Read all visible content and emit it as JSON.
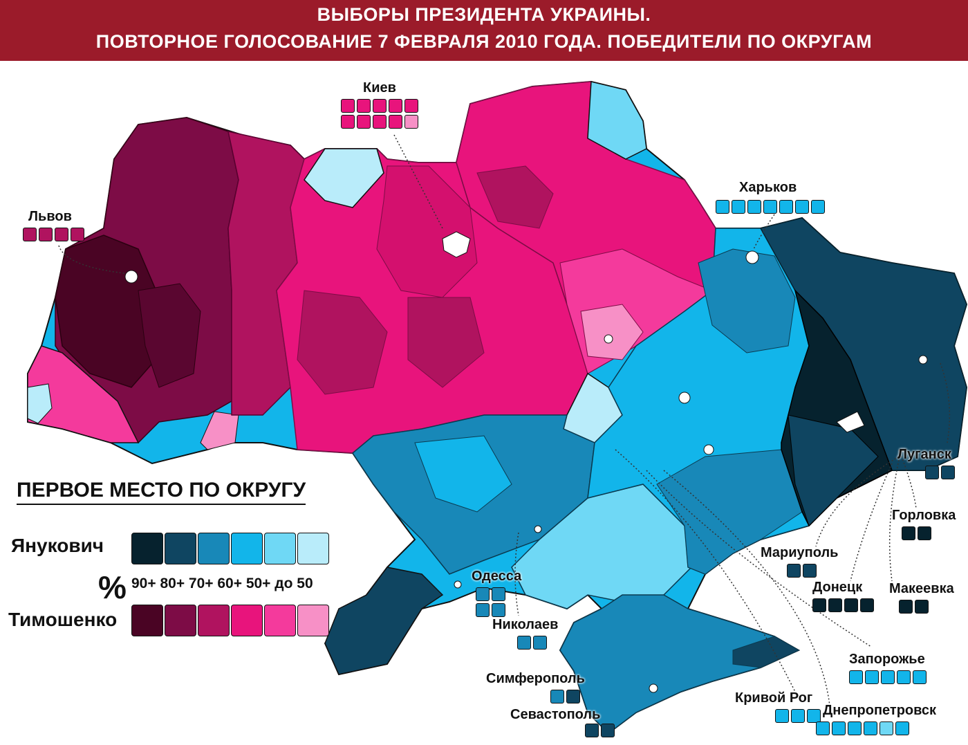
{
  "title": {
    "line1": "ВЫБОРЫ ПРЕЗИДЕНТА УКРАИНЫ.",
    "line2": "ПОВТОРНОЕ ГОЛОСОВАНИЕ 7 ФЕВРАЛЯ 2010 ГОДА. ПОБЕДИТЕЛИ ПО ОКРУГАМ"
  },
  "colors": {
    "header_bg": "#9b1b2a",
    "yanukovych": [
      "#06222e",
      "#0f4561",
      "#1888b8",
      "#12b5ea",
      "#6fd8f5",
      "#b9ecfa"
    ],
    "tymoshenko": [
      "#4a0424",
      "#7d0c46",
      "#b0135f",
      "#e8147c",
      "#f43a9c",
      "#f790c6"
    ]
  },
  "legend": {
    "title": "ПЕРВОЕ МЕСТО ПО ОКРУГУ",
    "yanukovych_label": "Янукович",
    "tymoshenko_label": "Тимошенко",
    "percent_sign": "%",
    "ranges": "90+ 80+ 70+ 60+ 50+ до 50"
  },
  "cities": [
    {
      "name": "Киев",
      "rows": [
        [
          1,
          1,
          1,
          1,
          1
        ],
        [
          1,
          1,
          1,
          1,
          3
        ]
      ],
      "party": "tymoshenko"
    },
    {
      "name": "Львов",
      "rows": [
        [
          1,
          1,
          1,
          1
        ]
      ],
      "party": "tymoshenko_dark"
    },
    {
      "name": "Харьков",
      "rows": [
        [
          3,
          3,
          3,
          3,
          3,
          3,
          3
        ]
      ],
      "party": "yanukovych"
    },
    {
      "name": "Луганск",
      "rows": [
        [
          1,
          1
        ]
      ],
      "party": "yanukovych"
    },
    {
      "name": "Горловка",
      "rows": [
        [
          0,
          0
        ]
      ],
      "party": "yanukovych"
    },
    {
      "name": "Мариуполь",
      "rows": [
        [
          1,
          1
        ]
      ],
      "party": "yanukovych"
    },
    {
      "name": "Донецк",
      "rows": [
        [
          0,
          0,
          0,
          0
        ]
      ],
      "party": "yanukovych"
    },
    {
      "name": "Макеевка",
      "rows": [
        [
          0,
          0
        ]
      ],
      "party": "yanukovych"
    },
    {
      "name": "Одесса",
      "rows": [
        [
          2,
          2
        ],
        [
          2,
          2
        ]
      ],
      "party": "yanukovych"
    },
    {
      "name": "Николаев",
      "rows": [
        [
          2,
          2
        ]
      ],
      "party": "yanukovych"
    },
    {
      "name": "Симферополь",
      "rows": [
        [
          2,
          1
        ]
      ],
      "party": "yanukovych"
    },
    {
      "name": "Севастополь",
      "rows": [
        [
          1,
          1
        ]
      ],
      "party": "yanukovych"
    },
    {
      "name": "Запорожье",
      "rows": [
        [
          3,
          3,
          3,
          3,
          3
        ]
      ],
      "party": "yanukovych"
    },
    {
      "name": "Кривой Рог",
      "rows": [
        [
          3,
          3,
          3
        ]
      ],
      "party": "yanukovych"
    },
    {
      "name": "Днепропетровск",
      "rows": [
        [
          3,
          3,
          3,
          3,
          4,
          3
        ]
      ],
      "party": "yanukovych"
    }
  ]
}
